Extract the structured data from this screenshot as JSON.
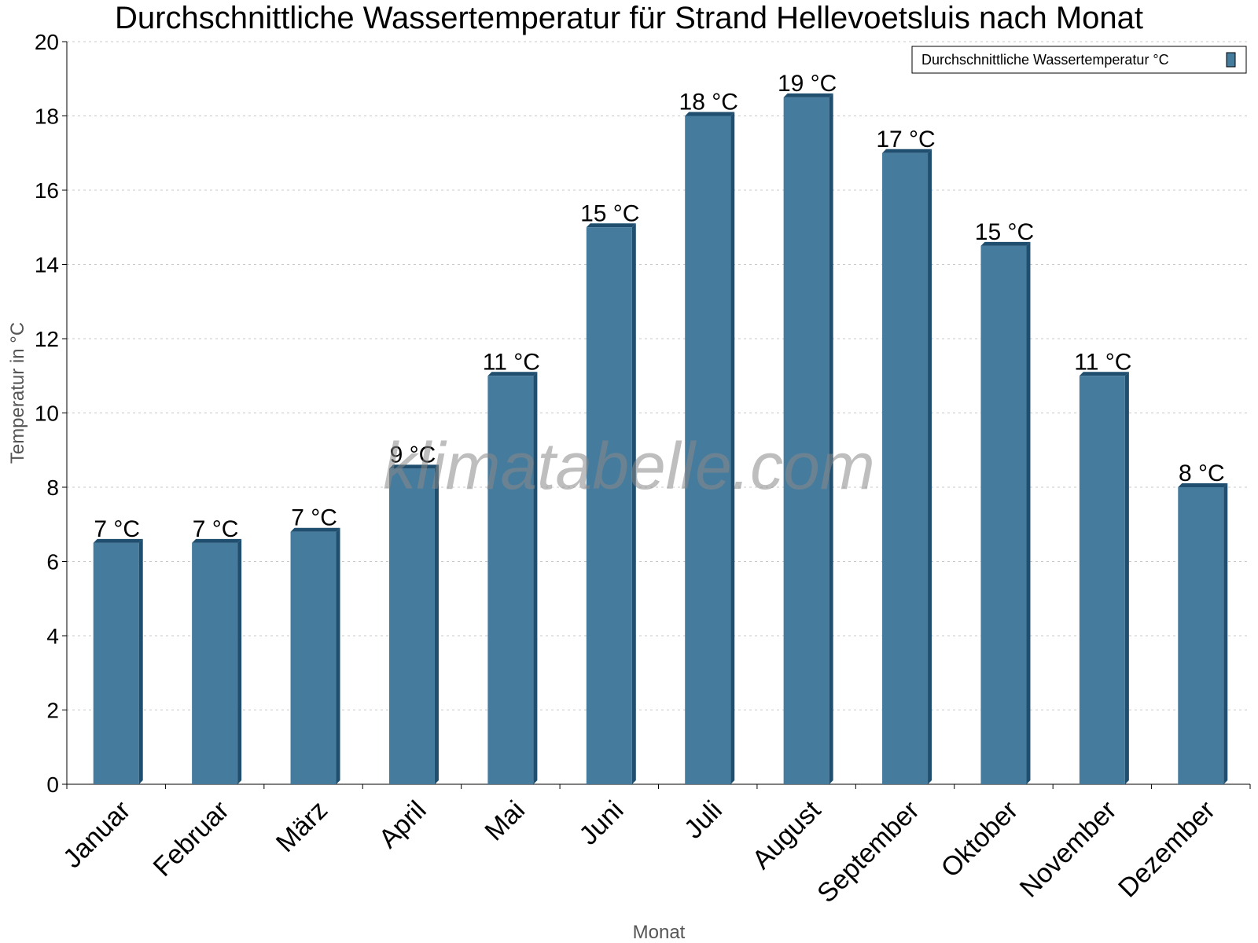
{
  "chart_data": {
    "type": "bar",
    "title": "Durchschnittliche Wassertemperatur für Strand Hellevoetsluis nach Monat",
    "xlabel": "Monat",
    "ylabel": "Temperatur in °C",
    "ylim": [
      0,
      20
    ],
    "yticks": [
      "0",
      "2",
      "4",
      "6",
      "8",
      "10",
      "12",
      "14",
      "16",
      "18",
      "20"
    ],
    "grid": true,
    "legend_position": "top-right",
    "categories": [
      "Januar",
      "Februar",
      "März",
      "April",
      "Mai",
      "Juni",
      "Juli",
      "August",
      "September",
      "Oktober",
      "November",
      "Dezember"
    ],
    "series": [
      {
        "name": "Durchschnittliche Wassertemperatur °C",
        "values": [
          6.5,
          6.5,
          6.8,
          8.5,
          11.0,
          15.0,
          18.0,
          18.5,
          17.0,
          14.5,
          11.0,
          8.0
        ],
        "labels": [
          "7 °C",
          "7 °C",
          "7 °C",
          "9 °C",
          "11 °C",
          "15 °C",
          "18 °C",
          "19 °C",
          "17 °C",
          "15 °C",
          "11 °C",
          "8 °C"
        ],
        "color": "#457b9d",
        "shade_color": "#1f4e6e"
      }
    ],
    "watermark": "klimatabelle.com"
  }
}
